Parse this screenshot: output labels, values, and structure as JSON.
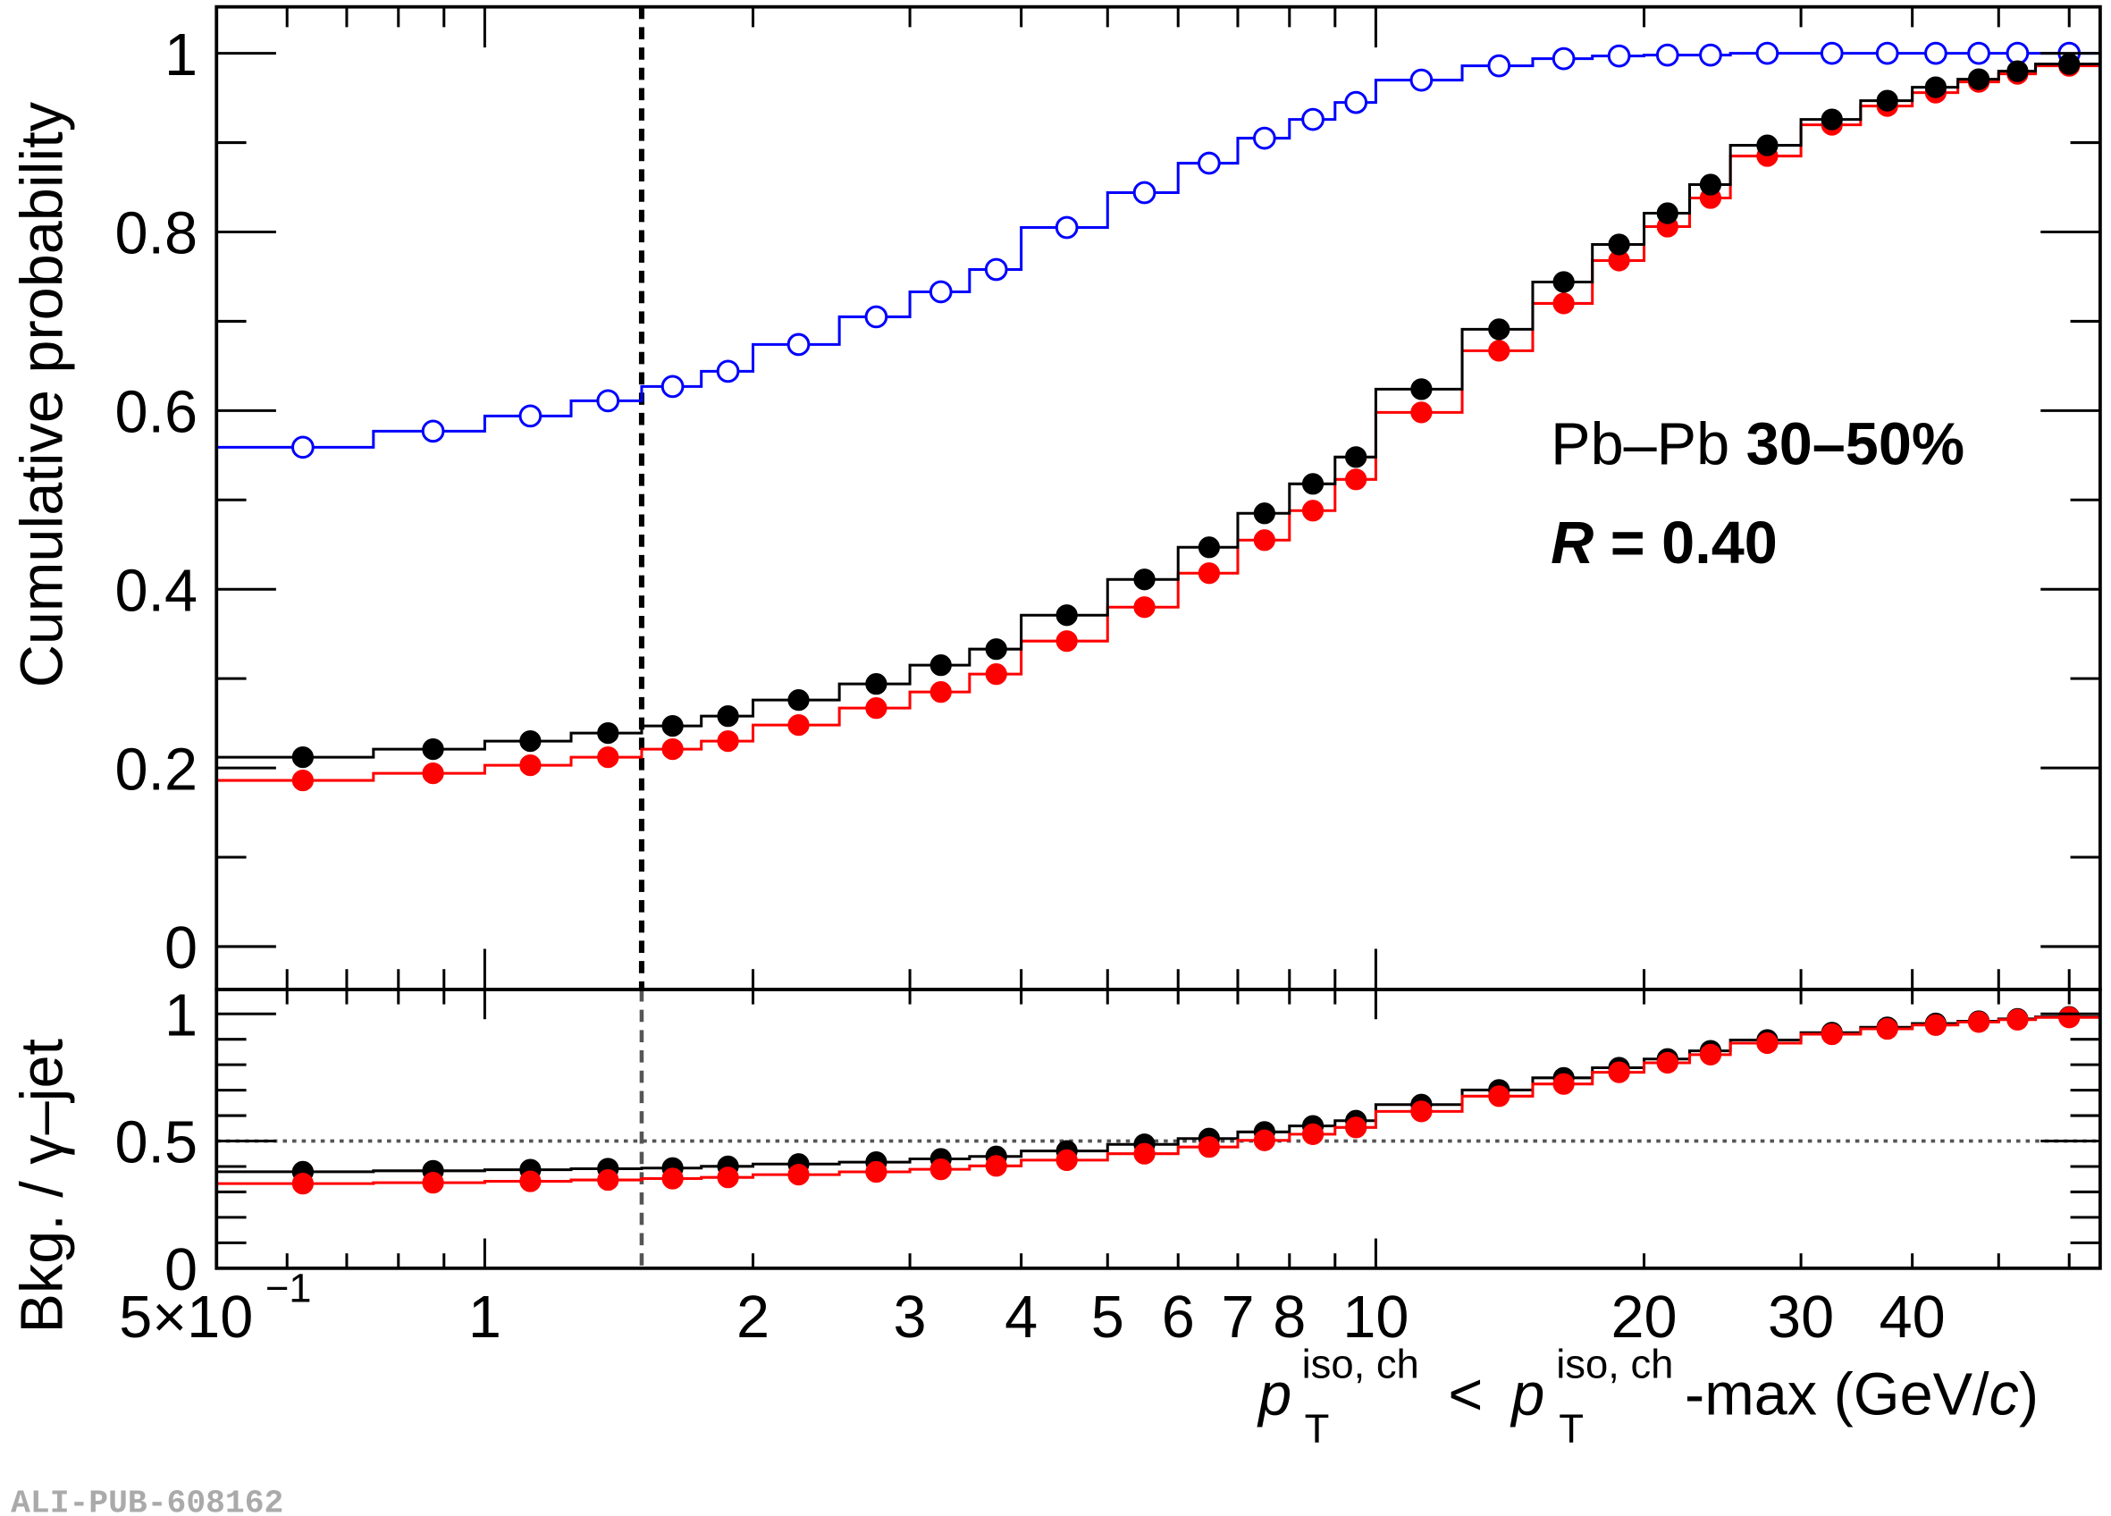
{
  "chart_data": {
    "type": "line",
    "title": "",
    "annotations": {
      "system": "Pb–Pb",
      "centrality": "30–50%",
      "radius_label": "R",
      "radius_value": " = 0.40"
    },
    "watermark": "ALI-PUB-608162",
    "xlabel": {
      "p": "p",
      "sup1": "iso, ch",
      "sub1": "T",
      "lt": " < ",
      "p2": "p",
      "sup2": "iso, ch",
      "sub2": "T",
      "rest": "-max (GeV/",
      "c": "c",
      "close": ")"
    },
    "xscale": "log",
    "xlim": [
      0.5,
      65
    ],
    "x_tick_labels": [
      {
        "v": 0.5,
        "t": "5×10",
        "exp": "−1"
      },
      {
        "v": 1,
        "t": "1"
      },
      {
        "v": 2,
        "t": "2"
      },
      {
        "v": 3,
        "t": "3"
      },
      {
        "v": 4,
        "t": "4"
      },
      {
        "v": 5,
        "t": "5"
      },
      {
        "v": 6,
        "t": "6"
      },
      {
        "v": 7,
        "t": "7"
      },
      {
        "v": 8,
        "t": "8"
      },
      {
        "v": 10,
        "t": "10"
      },
      {
        "v": 20,
        "t": "20"
      },
      {
        "v": 30,
        "t": "30"
      },
      {
        "v": 40,
        "t": "40"
      }
    ],
    "top_panel": {
      "ylabel": "Cumulative probability",
      "ylim": [
        -0.048,
        1.052
      ],
      "y_tick_labels": [
        {
          "v": 0,
          "t": "0"
        },
        {
          "v": 0.2,
          "t": "0.2"
        },
        {
          "v": 0.4,
          "t": "0.4"
        },
        {
          "v": 0.6,
          "t": "0.6"
        },
        {
          "v": 0.8,
          "t": "0.8"
        },
        {
          "v": 1,
          "t": "1"
        }
      ]
    },
    "bottom_panel": {
      "ylabel": "Bkg. / γ–jet",
      "ylim": [
        0,
        1.096
      ],
      "y_tick_labels": [
        {
          "v": 0,
          "t": "0"
        },
        {
          "v": 0.5,
          "t": "0.5"
        },
        {
          "v": 1,
          "t": "1"
        }
      ],
      "reference_line": 0.5,
      "ratio_denominator": "gamma-jet"
    },
    "vertical_cut": 1.5,
    "bin_edges": [
      0.5,
      0.75,
      1,
      1.25,
      1.5,
      1.75,
      2,
      2.5,
      3,
      3.5,
      4,
      5,
      6,
      7,
      8,
      9,
      10,
      12.5,
      15,
      17.5,
      20,
      22.5,
      25,
      30,
      35,
      40,
      45,
      50,
      55,
      65
    ],
    "series": [
      {
        "name": "gamma-jet",
        "color": "#0000ff",
        "marker": "open-circle",
        "values": [
          0.559,
          0.577,
          0.594,
          0.611,
          0.627,
          0.644,
          0.674,
          0.705,
          0.733,
          0.758,
          0.805,
          0.844,
          0.877,
          0.905,
          0.926,
          0.945,
          0.97,
          0.986,
          0.994,
          0.997,
          0.998,
          0.998,
          1.0,
          1.0,
          1.0,
          1.0,
          1.0,
          1.0,
          1.0
        ]
      },
      {
        "name": "bkg-black",
        "color": "#000000",
        "marker": "filled-circle",
        "values": [
          0.212,
          0.221,
          0.23,
          0.239,
          0.247,
          0.258,
          0.276,
          0.294,
          0.315,
          0.333,
          0.371,
          0.411,
          0.447,
          0.485,
          0.518,
          0.548,
          0.624,
          0.691,
          0.744,
          0.786,
          0.821,
          0.853,
          0.897,
          0.926,
          0.947,
          0.962,
          0.971,
          0.98,
          0.988
        ]
      },
      {
        "name": "bkg-red",
        "color": "#ff0000",
        "marker": "filled-circle",
        "values": [
          0.186,
          0.194,
          0.203,
          0.212,
          0.221,
          0.23,
          0.248,
          0.267,
          0.285,
          0.305,
          0.342,
          0.38,
          0.418,
          0.455,
          0.488,
          0.523,
          0.598,
          0.667,
          0.72,
          0.768,
          0.806,
          0.838,
          0.885,
          0.92,
          0.941,
          0.956,
          0.968,
          0.977,
          0.986
        ]
      }
    ]
  }
}
